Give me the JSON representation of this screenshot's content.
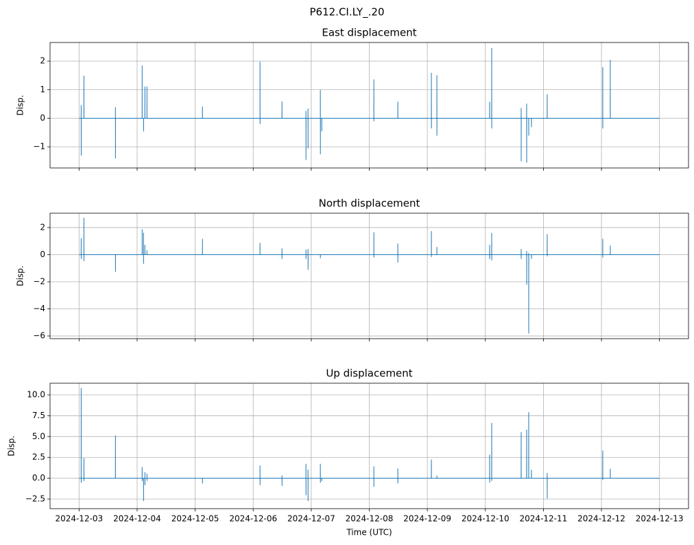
{
  "title": "P612.CI.LY_.20",
  "chart_data": [
    {
      "type": "line",
      "title": "East displacement",
      "ylabel": "Disp.",
      "color": "#1f77b4",
      "grid": true,
      "xlim": [
        "2024-12-02T12:00",
        "2024-12-13T12:00"
      ],
      "xticks": [
        "2024-12-03",
        "2024-12-04",
        "2024-12-05",
        "2024-12-06",
        "2024-12-07",
        "2024-12-08",
        "2024-12-09",
        "2024-12-10",
        "2024-12-11",
        "2024-12-12",
        "2024-12-13"
      ],
      "ylim": [
        -1.74,
        2.65
      ],
      "yticks": [
        {
          "value": -1,
          "label": "−1"
        },
        0,
        1,
        2
      ],
      "x": [
        "2024-12-03T00:00",
        "2024-12-03T00:51",
        "2024-12-03T00:52",
        "2024-12-03T00:53",
        "2024-12-03T00:54",
        "2024-12-03T01:59",
        "2024-12-03T02:00",
        "2024-12-03T02:01",
        "2024-12-03T02:02",
        "2024-12-03T15:01",
        "2024-12-03T15:02",
        "2024-12-03T15:03",
        "2024-12-03T15:04",
        "2024-12-04T02:04",
        "2024-12-04T02:05",
        "2024-12-04T02:06",
        "2024-12-04T02:07",
        "2024-12-04T02:38",
        "2024-12-04T02:39",
        "2024-12-04T02:40",
        "2024-12-04T02:41",
        "2024-12-04T03:12",
        "2024-12-04T03:13",
        "2024-12-04T03:14",
        "2024-12-04T03:15",
        "2024-12-04T04:03",
        "2024-12-04T04:04",
        "2024-12-04T04:05",
        "2024-12-04T04:06",
        "2024-12-05T03:00",
        "2024-12-05T03:01",
        "2024-12-05T03:02",
        "2024-12-05T03:03",
        "2024-12-06T02:48",
        "2024-12-06T02:49",
        "2024-12-06T02:50",
        "2024-12-06T02:51",
        "2024-12-06T11:53",
        "2024-12-06T11:54",
        "2024-12-06T11:55",
        "2024-12-06T11:56",
        "2024-12-06T21:48",
        "2024-12-06T21:49",
        "2024-12-06T21:50",
        "2024-12-06T21:51",
        "2024-12-06T22:39",
        "2024-12-06T22:40",
        "2024-12-06T22:41",
        "2024-12-06T22:42",
        "2024-12-07T03:45",
        "2024-12-07T03:46",
        "2024-12-07T03:47",
        "2024-12-07T03:48",
        "2024-12-07T04:19",
        "2024-12-07T04:20",
        "2024-12-07T04:21",
        "2024-12-07T04:22",
        "2024-12-08T01:52",
        "2024-12-08T01:53",
        "2024-12-08T01:54",
        "2024-12-08T01:55",
        "2024-12-08T11:47",
        "2024-12-08T11:48",
        "2024-12-08T11:49",
        "2024-12-08T11:50",
        "2024-12-09T01:40",
        "2024-12-09T01:41",
        "2024-12-09T01:42",
        "2024-12-09T01:43",
        "2024-12-09T03:56",
        "2024-12-09T03:57",
        "2024-12-09T03:58",
        "2024-12-09T03:59",
        "2024-12-10T01:45",
        "2024-12-10T01:46",
        "2024-12-10T01:47",
        "2024-12-10T01:48",
        "2024-12-10T02:36",
        "2024-12-10T02:37",
        "2024-12-10T02:38",
        "2024-12-10T02:39",
        "2024-12-10T14:47",
        "2024-12-10T14:48",
        "2024-12-10T14:49",
        "2024-12-10T14:50",
        "2024-12-10T17:03",
        "2024-12-10T17:04",
        "2024-12-10T17:05",
        "2024-12-10T17:06",
        "2024-12-10T17:54",
        "2024-12-10T17:55",
        "2024-12-10T17:56",
        "2024-12-10T17:57",
        "2024-12-10T19:02",
        "2024-12-10T19:03",
        "2024-12-10T19:04",
        "2024-12-10T19:05",
        "2024-12-11T01:33",
        "2024-12-11T01:34",
        "2024-12-11T01:35",
        "2024-12-11T01:36",
        "2024-12-12T00:31",
        "2024-12-12T00:32",
        "2024-12-12T00:33",
        "2024-12-12T00:34",
        "2024-12-12T03:38",
        "2024-12-12T03:39",
        "2024-12-12T03:40",
        "2024-12-12T03:41",
        "2024-12-13T00:00"
      ],
      "values": [
        0,
        0,
        0.45,
        -1.3,
        0,
        0,
        1.48,
        0,
        0,
        0,
        0.38,
        -1.4,
        0,
        0,
        1.83,
        0,
        0,
        0,
        0,
        -0.45,
        0,
        0,
        1.1,
        0,
        0,
        0,
        1.1,
        0,
        0,
        0,
        0.4,
        0,
        0,
        0,
        1.97,
        -0.2,
        0,
        0,
        0.58,
        0,
        0,
        0,
        0.25,
        -1.45,
        0,
        0,
        0.33,
        -1.05,
        0,
        0,
        0.98,
        -1.25,
        0,
        0,
        0,
        -0.45,
        0,
        0,
        1.35,
        -0.1,
        0,
        0,
        0.57,
        0,
        0,
        0,
        1.58,
        -0.35,
        0,
        0,
        1.5,
        -0.6,
        0,
        0,
        0.57,
        0,
        0,
        0,
        2.45,
        -0.35,
        0,
        0,
        0.35,
        -1.5,
        0,
        0,
        0.5,
        -1.55,
        0,
        0,
        0,
        -0.6,
        0,
        0,
        0,
        -0.3,
        0,
        0,
        0.83,
        0,
        0,
        0,
        1.78,
        -0.35,
        0,
        0,
        2.03,
        0,
        0,
        0
      ]
    },
    {
      "type": "line",
      "title": "North displacement",
      "ylabel": "Disp.",
      "color": "#1f77b4",
      "grid": true,
      "xlim": [
        "2024-12-02T12:00",
        "2024-12-13T12:00"
      ],
      "xticks": [
        "2024-12-03",
        "2024-12-04",
        "2024-12-05",
        "2024-12-06",
        "2024-12-07",
        "2024-12-08",
        "2024-12-09",
        "2024-12-10",
        "2024-12-11",
        "2024-12-12",
        "2024-12-13"
      ],
      "ylim": [
        -6.2,
        3.06
      ],
      "yticks": [
        {
          "value": -6,
          "label": "−6"
        },
        {
          "value": -4,
          "label": "−4"
        },
        {
          "value": -2,
          "label": "−2"
        },
        0,
        2
      ],
      "x": [
        "2024-12-03T00:00",
        "2024-12-03T00:51",
        "2024-12-03T00:52",
        "2024-12-03T00:53",
        "2024-12-03T00:54",
        "2024-12-03T01:59",
        "2024-12-03T02:00",
        "2024-12-03T02:01",
        "2024-12-03T02:02",
        "2024-12-03T15:01",
        "2024-12-03T15:02",
        "2024-12-03T15:03",
        "2024-12-03T15:04",
        "2024-12-04T02:04",
        "2024-12-04T02:05",
        "2024-12-04T02:06",
        "2024-12-04T02:07",
        "2024-12-04T02:38",
        "2024-12-04T02:39",
        "2024-12-04T02:40",
        "2024-12-04T02:41",
        "2024-12-04T03:12",
        "2024-12-04T03:13",
        "2024-12-04T03:14",
        "2024-12-04T03:15",
        "2024-12-04T04:03",
        "2024-12-04T04:04",
        "2024-12-04T04:05",
        "2024-12-04T04:06",
        "2024-12-05T03:00",
        "2024-12-05T03:01",
        "2024-12-05T03:02",
        "2024-12-05T03:03",
        "2024-12-06T02:48",
        "2024-12-06T02:49",
        "2024-12-06T02:50",
        "2024-12-06T02:51",
        "2024-12-06T11:53",
        "2024-12-06T11:54",
        "2024-12-06T11:55",
        "2024-12-06T11:56",
        "2024-12-06T21:48",
        "2024-12-06T21:49",
        "2024-12-06T21:50",
        "2024-12-06T21:51",
        "2024-12-06T22:39",
        "2024-12-06T22:40",
        "2024-12-06T22:41",
        "2024-12-06T22:42",
        "2024-12-07T03:45",
        "2024-12-07T03:46",
        "2024-12-07T03:47",
        "2024-12-07T03:48",
        "2024-12-07T04:19",
        "2024-12-07T04:20",
        "2024-12-07T04:21",
        "2024-12-07T04:22",
        "2024-12-08T01:52",
        "2024-12-08T01:53",
        "2024-12-08T01:54",
        "2024-12-08T01:55",
        "2024-12-08T11:47",
        "2024-12-08T11:48",
        "2024-12-08T11:49",
        "2024-12-08T11:50",
        "2024-12-09T01:40",
        "2024-12-09T01:41",
        "2024-12-09T01:42",
        "2024-12-09T01:43",
        "2024-12-09T03:56",
        "2024-12-09T03:57",
        "2024-12-09T03:58",
        "2024-12-09T03:59",
        "2024-12-10T01:45",
        "2024-12-10T01:46",
        "2024-12-10T01:47",
        "2024-12-10T01:48",
        "2024-12-10T02:36",
        "2024-12-10T02:37",
        "2024-12-10T02:38",
        "2024-12-10T02:39",
        "2024-12-10T14:47",
        "2024-12-10T14:48",
        "2024-12-10T14:49",
        "2024-12-10T14:50",
        "2024-12-10T17:03",
        "2024-12-10T17:04",
        "2024-12-10T17:05",
        "2024-12-10T17:06",
        "2024-12-10T17:54",
        "2024-12-10T17:55",
        "2024-12-10T17:56",
        "2024-12-10T17:57",
        "2024-12-10T19:02",
        "2024-12-10T19:03",
        "2024-12-10T19:04",
        "2024-12-10T19:05",
        "2024-12-11T01:33",
        "2024-12-11T01:34",
        "2024-12-11T01:35",
        "2024-12-11T01:36",
        "2024-12-12T00:31",
        "2024-12-12T00:32",
        "2024-12-12T00:33",
        "2024-12-12T00:34",
        "2024-12-12T03:38",
        "2024-12-12T03:39",
        "2024-12-12T03:40",
        "2024-12-12T03:41",
        "2024-12-13T00:00"
      ],
      "values": [
        0,
        0,
        1.2,
        -0.3,
        0,
        0,
        2.7,
        -0.45,
        0,
        0,
        0,
        -1.25,
        0,
        0,
        1.85,
        0,
        0,
        0,
        1.6,
        -0.65,
        0,
        0,
        0.7,
        0,
        0,
        0,
        0.3,
        0,
        0,
        0,
        1.15,
        0,
        0,
        0,
        0.85,
        0,
        0,
        0,
        0.45,
        -0.3,
        0,
        0,
        0.35,
        -0.3,
        0,
        0,
        0.4,
        -1.1,
        0,
        0,
        0,
        -0.25,
        0,
        0,
        0,
        0,
        0,
        0,
        1.63,
        -0.2,
        0,
        0,
        0.8,
        -0.55,
        0,
        0,
        1.72,
        -0.15,
        0,
        0,
        0.55,
        0,
        0,
        0,
        0.7,
        -0.3,
        0,
        0,
        1.58,
        -0.4,
        0,
        0,
        0.4,
        -0.3,
        0,
        0,
        0.25,
        -2.2,
        0,
        0,
        0.1,
        -5.8,
        0,
        0,
        0,
        -0.3,
        0,
        0,
        1.5,
        -0.1,
        0,
        0,
        1.15,
        -0.2,
        0,
        0,
        0.65,
        0,
        0,
        0
      ]
    },
    {
      "type": "line",
      "title": "Up displacement",
      "ylabel": "Disp.",
      "xlabel": "Time (UTC)",
      "color": "#1f77b4",
      "grid": true,
      "xlim": [
        "2024-12-02T12:00",
        "2024-12-13T12:00"
      ],
      "xticks": [
        "2024-12-03",
        "2024-12-04",
        "2024-12-05",
        "2024-12-06",
        "2024-12-07",
        "2024-12-08",
        "2024-12-09",
        "2024-12-10",
        "2024-12-11",
        "2024-12-12",
        "2024-12-13"
      ],
      "ylim": [
        -3.65,
        11.4
      ],
      "yticks": [
        {
          "value": -2.5,
          "label": "−2.5"
        },
        {
          "value": 0,
          "label": "0.0"
        },
        2.5,
        {
          "value": 5,
          "label": "5.0"
        },
        7.5,
        {
          "value": 10,
          "label": "10.0"
        }
      ],
      "x": [
        "2024-12-03T00:00",
        "2024-12-03T00:51",
        "2024-12-03T00:52",
        "2024-12-03T00:53",
        "2024-12-03T00:54",
        "2024-12-03T01:59",
        "2024-12-03T02:00",
        "2024-12-03T02:01",
        "2024-12-03T02:02",
        "2024-12-03T15:01",
        "2024-12-03T15:02",
        "2024-12-03T15:03",
        "2024-12-03T15:04",
        "2024-12-04T02:04",
        "2024-12-04T02:05",
        "2024-12-04T02:06",
        "2024-12-04T02:07",
        "2024-12-04T02:38",
        "2024-12-04T02:39",
        "2024-12-04T02:40",
        "2024-12-04T02:41",
        "2024-12-04T03:12",
        "2024-12-04T03:13",
        "2024-12-04T03:14",
        "2024-12-04T03:15",
        "2024-12-04T04:03",
        "2024-12-04T04:04",
        "2024-12-04T04:05",
        "2024-12-04T04:06",
        "2024-12-05T03:00",
        "2024-12-05T03:01",
        "2024-12-05T03:02",
        "2024-12-05T03:03",
        "2024-12-06T02:48",
        "2024-12-06T02:49",
        "2024-12-06T02:50",
        "2024-12-06T02:51",
        "2024-12-06T11:53",
        "2024-12-06T11:54",
        "2024-12-06T11:55",
        "2024-12-06T11:56",
        "2024-12-06T21:48",
        "2024-12-06T21:49",
        "2024-12-06T21:50",
        "2024-12-06T21:51",
        "2024-12-06T22:39",
        "2024-12-06T22:40",
        "2024-12-06T22:41",
        "2024-12-06T22:42",
        "2024-12-07T03:45",
        "2024-12-07T03:46",
        "2024-12-07T03:47",
        "2024-12-07T03:48",
        "2024-12-07T04:19",
        "2024-12-07T04:20",
        "2024-12-07T04:21",
        "2024-12-07T04:22",
        "2024-12-08T01:52",
        "2024-12-08T01:53",
        "2024-12-08T01:54",
        "2024-12-08T01:55",
        "2024-12-08T11:47",
        "2024-12-08T11:48",
        "2024-12-08T11:49",
        "2024-12-08T11:50",
        "2024-12-09T01:40",
        "2024-12-09T01:41",
        "2024-12-09T01:42",
        "2024-12-09T01:43",
        "2024-12-09T03:56",
        "2024-12-09T03:57",
        "2024-12-09T03:58",
        "2024-12-09T03:59",
        "2024-12-10T01:45",
        "2024-12-10T01:46",
        "2024-12-10T01:47",
        "2024-12-10T01:48",
        "2024-12-10T02:36",
        "2024-12-10T02:37",
        "2024-12-10T02:38",
        "2024-12-10T02:39",
        "2024-12-10T14:47",
        "2024-12-10T14:48",
        "2024-12-10T14:49",
        "2024-12-10T14:50",
        "2024-12-10T17:03",
        "2024-12-10T17:04",
        "2024-12-10T17:05",
        "2024-12-10T17:06",
        "2024-12-10T17:54",
        "2024-12-10T17:55",
        "2024-12-10T17:56",
        "2024-12-10T17:57",
        "2024-12-10T19:02",
        "2024-12-10T19:03",
        "2024-12-10T19:04",
        "2024-12-10T19:05",
        "2024-12-11T01:33",
        "2024-12-11T01:34",
        "2024-12-11T01:35",
        "2024-12-11T01:36",
        "2024-12-12T00:31",
        "2024-12-12T00:32",
        "2024-12-12T00:33",
        "2024-12-12T00:34",
        "2024-12-12T03:38",
        "2024-12-12T03:39",
        "2024-12-12T03:40",
        "2024-12-12T03:41",
        "2024-12-13T00:00"
      ],
      "values": [
        0,
        0,
        10.8,
        -0.5,
        0,
        0,
        2.4,
        -0.3,
        0,
        0,
        5.1,
        0,
        0,
        0,
        1.3,
        -0.3,
        0,
        0,
        0,
        -2.7,
        0,
        0,
        0.7,
        -0.8,
        0,
        0,
        0.5,
        -0.3,
        0,
        0,
        0,
        -0.6,
        0,
        0,
        1.5,
        -0.8,
        0,
        0,
        0.3,
        -0.9,
        0,
        0,
        1.7,
        -2.0,
        0,
        0,
        1.0,
        -2.7,
        0,
        0,
        1.7,
        -0.5,
        0,
        0,
        0,
        -0.3,
        0,
        0,
        1.4,
        -1.0,
        0,
        0,
        1.15,
        -0.6,
        0,
        0,
        2.2,
        0,
        0,
        0,
        0.3,
        0,
        0,
        0,
        2.8,
        -0.5,
        0,
        0,
        6.6,
        -0.3,
        0,
        0,
        5.5,
        0,
        0,
        0,
        5.8,
        0,
        0,
        0,
        7.9,
        0,
        0,
        0,
        1.0,
        0,
        0,
        0,
        0.6,
        -2.4,
        0,
        0,
        3.3,
        -0.2,
        0,
        0,
        1.1,
        0,
        0,
        0
      ]
    }
  ]
}
